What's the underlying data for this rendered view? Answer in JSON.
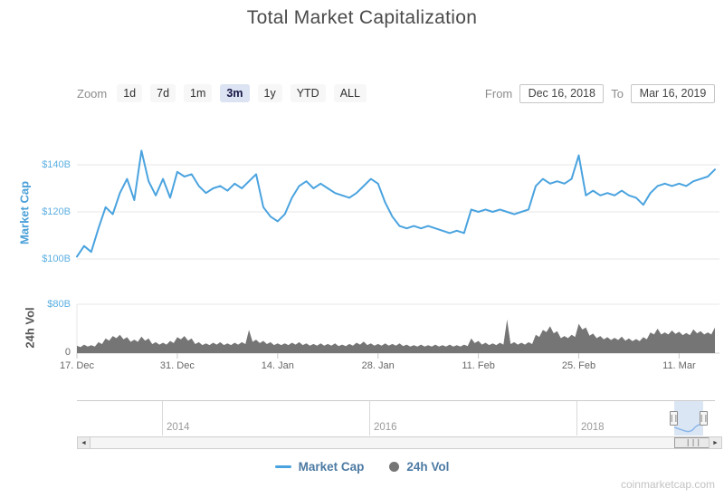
{
  "title": "Total Market Capitalization",
  "controls": {
    "zoom_label": "Zoom",
    "zoom_buttons": [
      "1d",
      "7d",
      "1m",
      "3m",
      "1y",
      "YTD",
      "ALL"
    ],
    "active_zoom": "3m",
    "from_label": "From",
    "from_value": "Dec 16, 2018",
    "to_label": "To",
    "to_value": "Mar 16, 2019"
  },
  "chart_data": {
    "type": "multi-pane-timeseries",
    "frequency": "daily",
    "x_start_date": "Dec 16, 2018",
    "x_end_date": "Mar 16, 2019",
    "x_tick_labels": [
      "17. Dec",
      "31. Dec",
      "14. Jan",
      "28. Jan",
      "11. Feb",
      "25. Feb",
      "11. Mar"
    ],
    "grid": "horizontal-only",
    "panes": [
      {
        "name": "Market Cap",
        "type": "line",
        "color": "#4aa3df",
        "ylabel": "Market Cap",
        "yticks": [
          "$100B",
          "$120B",
          "$140B"
        ],
        "ylim": [
          97,
          148
        ],
        "unit": "USD billions"
      },
      {
        "name": "24h Vol",
        "type": "area",
        "color": "#757575",
        "ylabel": "24h Vol",
        "yticks": [
          "0",
          "$80B"
        ],
        "ylim": [
          0,
          80
        ],
        "unit": "USD billions"
      }
    ],
    "market_cap_billions": [
      103,
      101,
      105.5,
      103,
      113,
      122,
      119,
      128,
      134,
      125,
      146,
      133,
      127,
      134,
      126,
      137,
      135,
      136,
      131,
      128,
      130,
      131,
      129,
      132,
      130,
      133,
      136,
      122,
      118,
      116,
      119,
      126,
      131,
      133,
      130,
      132,
      130,
      128,
      127,
      126,
      128,
      131,
      134,
      132,
      124,
      118,
      114,
      113,
      114,
      113,
      114,
      113,
      112,
      111,
      112,
      111,
      121,
      120,
      121,
      120,
      121,
      120,
      119,
      120,
      121,
      131,
      134,
      132,
      133,
      132,
      134,
      144,
      127,
      129,
      127,
      128,
      127,
      129,
      127,
      126,
      123,
      128,
      131,
      132,
      131,
      132,
      131,
      133,
      134,
      135,
      138
    ],
    "volume_billions": [
      13,
      12,
      14,
      13,
      18,
      24,
      28,
      30,
      26,
      22,
      27,
      24,
      18,
      17,
      20,
      26,
      28,
      24,
      18,
      16,
      17,
      18,
      16,
      17,
      18,
      38,
      22,
      20,
      18,
      16,
      16,
      17,
      18,
      16,
      15,
      16,
      15,
      16,
      14,
      15,
      17,
      19,
      16,
      15,
      16,
      15,
      16,
      14,
      13,
      14,
      13,
      14,
      13,
      14,
      13,
      14,
      24,
      20,
      17,
      16,
      17,
      55,
      18,
      17,
      18,
      30,
      38,
      44,
      36,
      28,
      30,
      48,
      42,
      32,
      28,
      26,
      25,
      27,
      24,
      23,
      26,
      34,
      40,
      34,
      37,
      35,
      33,
      39,
      36,
      34,
      42
    ]
  },
  "navigator": {
    "year_labels": [
      "2014",
      "2016",
      "2018"
    ],
    "handle_grip": "||"
  },
  "scrollbar": {
    "left_icon": "◄",
    "right_icon": "►",
    "thumb_grip": "|||"
  },
  "legend": [
    {
      "label": "Market Cap",
      "color": "#4aa3df",
      "symbol": "line"
    },
    {
      "label": "24h Vol",
      "color": "#757575",
      "symbol": "circle"
    }
  ],
  "watermark": "coinmarketcap.com"
}
